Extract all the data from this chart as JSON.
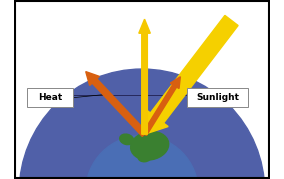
{
  "figsize": [
    2.84,
    1.79
  ],
  "dpi": 100,
  "bg_color": "#ffffff",
  "border_color": "#000000",
  "atm_colors": [
    "#5060a8",
    "#7080bc",
    "#9aaad0",
    "#c0cce0"
  ],
  "atm_radii": [
    4.8,
    4.0,
    3.3,
    2.7
  ],
  "earth_color_ocean": "#4a6eb5",
  "earth_color_land": "#3a8030",
  "earth_r": 2.2,
  "arrow_sunlight_color": "#f5d000",
  "arrow_heat_color": "#d86010",
  "arrow_up_color": "#f5c800",
  "label_heat": "Heat",
  "label_sunlight": "Sunlight"
}
